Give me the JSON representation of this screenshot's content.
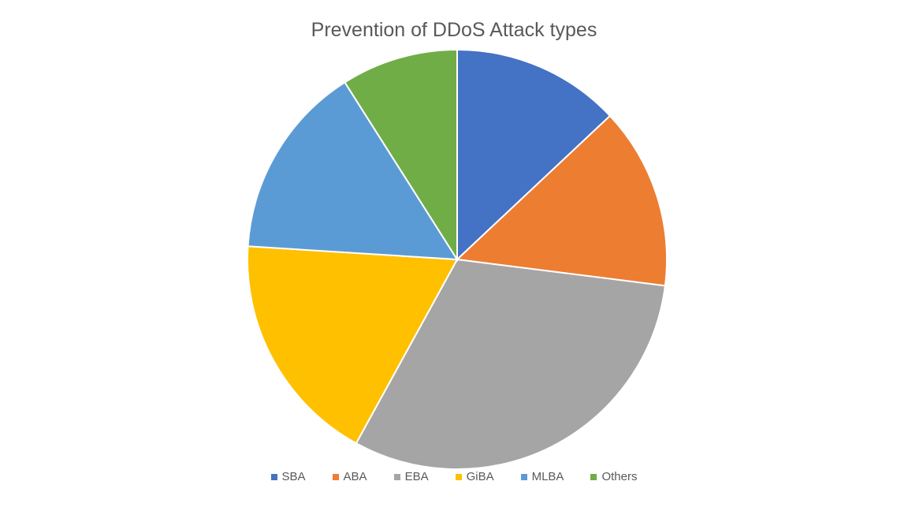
{
  "chart_data": {
    "type": "pie",
    "title": "Prevention of DDoS Attack types",
    "categories": [
      "SBA",
      "ABA",
      "EBA",
      "GiBA",
      "MLBA",
      "Others"
    ],
    "values": [
      13,
      14,
      31,
      18,
      15,
      9
    ],
    "colors": [
      "#4472C4",
      "#ED7D31",
      "#A5A5A5",
      "#FFC000",
      "#5B9BD5",
      "#70AD47"
    ],
    "legend_position": "bottom",
    "start_angle_deg": 0,
    "direction": "clockwise"
  }
}
